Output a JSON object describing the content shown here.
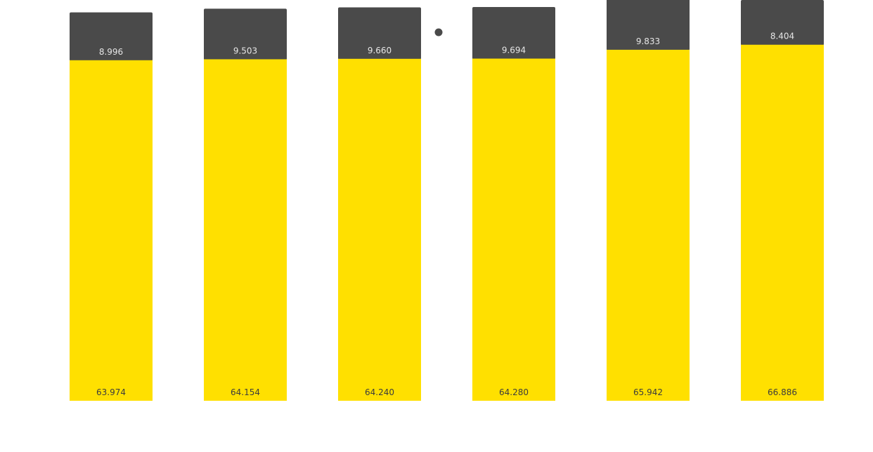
{
  "chart_data": {
    "type": "bar",
    "stacked": true,
    "title": "",
    "xlabel": "",
    "ylabel": "",
    "categories": [
      "",
      "",
      "",
      "",
      "",
      ""
    ],
    "series": [
      {
        "color": "#FFE000",
        "label_color": "#3C3C3C",
        "values": [
          63.974,
          64.154,
          64.24,
          64.28,
          65.942,
          66.886
        ],
        "labels": [
          "63.974",
          "64.154",
          "64.240",
          "64.280",
          "65.942",
          "66.886"
        ]
      },
      {
        "color": "#4A4A4A",
        "label_color": "#E6E6E6",
        "values": [
          8.996,
          9.503,
          9.66,
          9.694,
          9.833,
          8.404
        ],
        "labels": [
          "8.996",
          "9.503",
          "9.660",
          "9.694",
          "9.833",
          "8.404"
        ]
      }
    ],
    "ylim": [
      0,
      75.29
    ],
    "grid": false,
    "legend_position": "top-center"
  }
}
